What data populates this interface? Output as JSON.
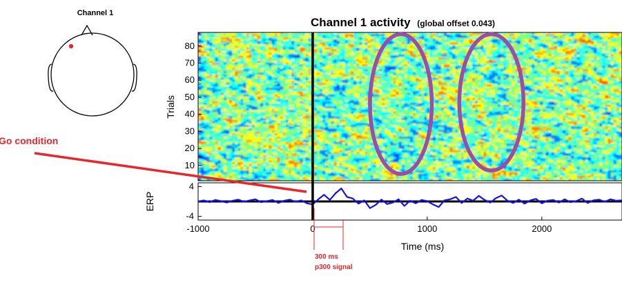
{
  "head_map": {
    "title": "Channel 1"
  },
  "annotations": {
    "go_condition": "Go condition",
    "bracket_line1": "300 ms",
    "bracket_line2": "p300 signal"
  },
  "colors": {
    "annotation_red": "#e8262b",
    "highlight_purple": "#9b4ea8",
    "erp_blue": "#1212ee",
    "axis_black": "#000000"
  },
  "chart_data": [
    {
      "type": "heatmap",
      "title": "Channel 1 activity",
      "subtitle": "(global offset 0.043)",
      "ylabel": "Trials",
      "xlim": [
        -1000,
        2700
      ],
      "ylim": [
        1,
        88
      ],
      "yticks": [
        10,
        20,
        30,
        40,
        50,
        60,
        70,
        80
      ],
      "colormap": [
        "#00008f",
        "#0000ff",
        "#0080ff",
        "#00ffff",
        "#80ff80",
        "#ffff00",
        "#ff8000",
        "#ff0000",
        "#800000"
      ],
      "event_time": 0,
      "highlight_ellipses": [
        {
          "center_time": 770,
          "center_trial": 46,
          "width_ms": 540,
          "height_trials": 82
        },
        {
          "center_time": 1560,
          "center_trial": 47,
          "width_ms": 560,
          "height_trials": 80
        }
      ]
    },
    {
      "type": "line",
      "ylabel": "ERP",
      "xlabel": "Time (ms)",
      "xlim": [
        -1000,
        2700
      ],
      "ylim": [
        -5,
        5
      ],
      "yticks": [
        -4,
        4
      ],
      "xticks": [
        -1000,
        0,
        1000,
        2000
      ],
      "series": [
        {
          "x": [
            -1000,
            -950,
            -900,
            -850,
            -800,
            -750,
            -700,
            -650,
            -600,
            -550,
            -500,
            -450,
            -400,
            -350,
            -300,
            -250,
            -200,
            -150,
            -100,
            -50,
            0,
            50,
            100,
            150,
            200,
            250,
            300,
            350,
            400,
            450,
            500,
            550,
            600,
            650,
            700,
            750,
            800,
            850,
            900,
            950,
            1000,
            1050,
            1100,
            1150,
            1200,
            1250,
            1300,
            1350,
            1400,
            1450,
            1500,
            1550,
            1600,
            1650,
            1700,
            1750,
            1800,
            1850,
            1900,
            1950,
            2000,
            2050,
            2100,
            2150,
            2200,
            2250,
            2300,
            2350,
            2400,
            2450,
            2500,
            2550,
            2600,
            2650,
            2700
          ],
          "values": [
            0,
            0.3,
            -0.2,
            0.4,
            0.1,
            -0.3,
            0.2,
            0.5,
            -0.1,
            0.3,
            0.6,
            -0.2,
            0.1,
            0.4,
            -0.4,
            0.2,
            0.5,
            -0.1,
            0.3,
            -0.5,
            -0.8,
            0.6,
            1.8,
            0.4,
            2.2,
            3.5,
            1.2,
            0.8,
            -0.6,
            0.3,
            -1.8,
            -0.9,
            0.5,
            -0.7,
            -0.3,
            0.6,
            -1.2,
            0.2,
            -0.5,
            0.4,
            0.1,
            -0.8,
            -1.5,
            0.3,
            0.6,
            1.2,
            -0.4,
            0.8,
            0.2,
            1.5,
            0.4,
            -0.3,
            0.9,
            1.6,
            0.2,
            -0.4,
            0.5,
            -0.6,
            0.3,
            0.7,
            -0.5,
            0.2,
            0.4,
            -0.3,
            0.6,
            -0.2,
            0.1,
            0.8,
            -0.4,
            0.3,
            0.5,
            -0.1,
            0.6,
            0.2,
            0.3
          ]
        }
      ]
    }
  ]
}
